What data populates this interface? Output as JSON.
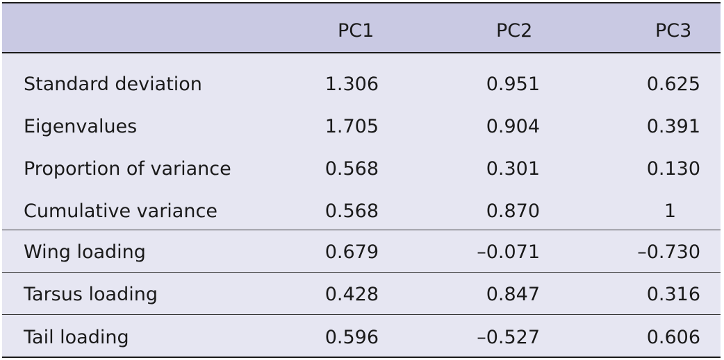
{
  "table": {
    "headers": [
      "",
      "PC1",
      "PC2",
      "PC3"
    ],
    "rows": [
      {
        "label": "Standard deviation",
        "pc1": "1.306",
        "pc2": "0.951",
        "pc3": "0.625"
      },
      {
        "label": "Eigenvalues",
        "pc1": "1.705",
        "pc2": "0.904",
        "pc3": "0.391"
      },
      {
        "label": "Proportion of variance",
        "pc1": "0.568",
        "pc2": "0.301",
        "pc3": "0.130"
      },
      {
        "label": "Cumulative variance",
        "pc1": "0.568",
        "pc2": "0.870",
        "pc3": "1"
      },
      {
        "label": "Wing loading",
        "pc1": "0.679",
        "pc2": "–0.071",
        "pc3": "–0.730"
      },
      {
        "label": "Tarsus loading",
        "pc1": "0.428",
        "pc2": "0.847",
        "pc3": "0.316"
      },
      {
        "label": "Tail loading",
        "pc1": "0.596",
        "pc2": "–0.527",
        "pc3": "0.606"
      }
    ]
  }
}
